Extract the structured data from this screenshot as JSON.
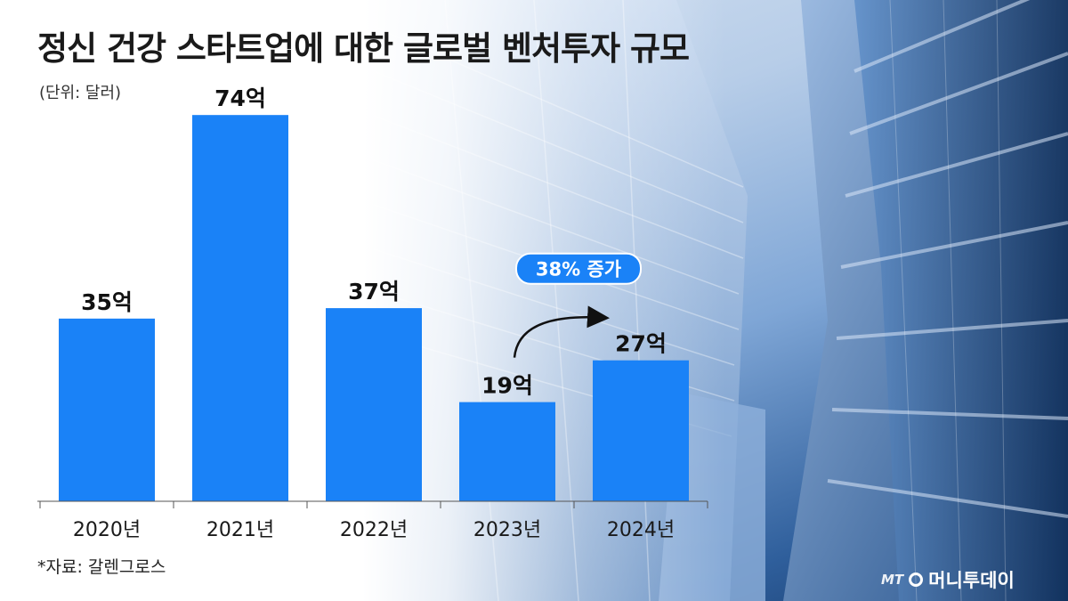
{
  "title": "정신 건강 스타트업에 대한 글로벌 벤처투자 규모",
  "unit": "(단위: 달러)",
  "source": "*자료: 갈렌그로스",
  "logo": {
    "mt": "MT",
    "name": "머니투데이"
  },
  "colors": {
    "bar": "#1a82f7",
    "axis": "#555555",
    "callout": "#1a82f7"
  },
  "chart_data": {
    "type": "bar",
    "categories": [
      "2020년",
      "2021년",
      "2022년",
      "2023년",
      "2024년"
    ],
    "values": [
      35,
      74,
      37,
      19,
      27
    ],
    "value_labels": [
      "35억",
      "74억",
      "37억",
      "19억",
      "27억"
    ],
    "ylim": [
      0,
      80
    ],
    "title": "정신 건강 스타트업에 대한 글로벌 벤처투자 규모",
    "annotation": "38% 증가",
    "annotation_from": "2023년",
    "annotation_to": "2024년"
  }
}
